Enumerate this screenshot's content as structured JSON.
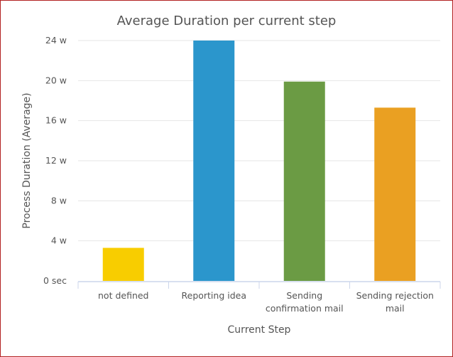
{
  "chart_data": {
    "type": "bar",
    "title": "Average Duration per current step",
    "xlabel": "Current Step",
    "ylabel": "Process Duration (Average)",
    "categories": [
      "not defined",
      "Reporting idea",
      "Sending confirmation mail",
      "Sending rejection mail"
    ],
    "category_label_lines": [
      [
        "not defined"
      ],
      [
        "Reporting idea"
      ],
      [
        "Sending",
        "confirmation mail"
      ],
      [
        "Sending rejection",
        "mail"
      ]
    ],
    "values": [
      3.3,
      24.0,
      19.9,
      17.3
    ],
    "value_unit": "weeks",
    "colors": [
      "#f8cd00",
      "#2b96cc",
      "#6b9b44",
      "#eaa022"
    ],
    "ylim": [
      0,
      24
    ],
    "yticks": [
      0,
      4,
      8,
      12,
      16,
      20,
      24
    ],
    "ytick_labels": [
      "0 sec",
      "4 w",
      "8 w",
      "12 w",
      "16 w",
      "20 w",
      "24 w"
    ],
    "grid": true,
    "legend": "none"
  }
}
